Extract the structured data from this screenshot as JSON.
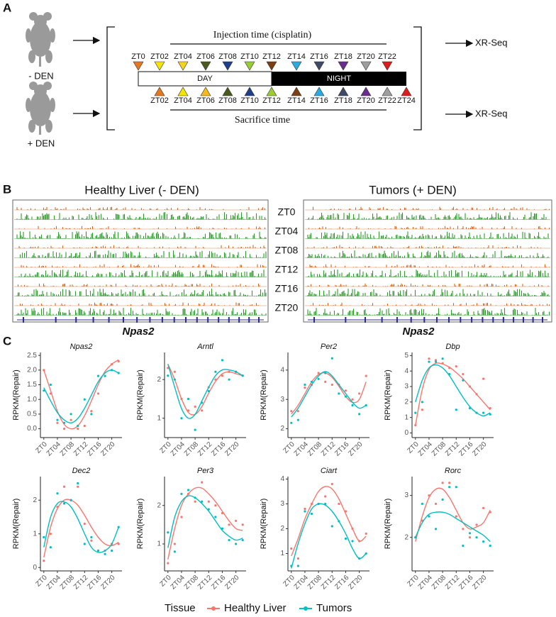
{
  "panels": {
    "a": "A",
    "b": "B",
    "c": "C"
  },
  "design": {
    "injection_label": "Injection time (cisplatin)",
    "sacrifice_label": "Sacrifice time",
    "groups": [
      "- DEN",
      "+ DEN"
    ],
    "output": [
      "XR-Seq",
      "XR-Seq"
    ],
    "day": "DAY",
    "night": "NIGHT",
    "top_points": [
      {
        "label": "ZT0",
        "color": "#e87722"
      },
      {
        "label": "ZT02",
        "color": "#f5e400"
      },
      {
        "label": "ZT04",
        "color": "#f7d31a"
      },
      {
        "label": "ZT06",
        "color": "#4a5a1c"
      },
      {
        "label": "ZT08",
        "color": "#1f3e8c"
      },
      {
        "label": "ZT10",
        "color": "#9acd32"
      },
      {
        "label": "ZT12",
        "color": "#7b3f12"
      },
      {
        "label": "ZT14",
        "color": "#29abe2"
      },
      {
        "label": "ZT16",
        "color": "#3f4a66"
      },
      {
        "label": "ZT18",
        "color": "#6a2c8f"
      },
      {
        "label": "ZT20",
        "color": "#9e9e9e"
      },
      {
        "label": "ZT22",
        "color": "#e01b1b"
      }
    ],
    "bottom_points": [
      {
        "label": "ZT02",
        "color": "#e87722"
      },
      {
        "label": "ZT04",
        "color": "#f5e400"
      },
      {
        "label": "ZT06",
        "color": "#f7b81a"
      },
      {
        "label": "ZT08",
        "color": "#4a5a1c"
      },
      {
        "label": "ZT10",
        "color": "#1f3e8c"
      },
      {
        "label": "ZT12",
        "color": "#9acd32"
      },
      {
        "label": "ZT14",
        "color": "#7b3f12"
      },
      {
        "label": "ZT16",
        "color": "#29abe2"
      },
      {
        "label": "ZT18",
        "color": "#3f4a66"
      },
      {
        "label": "ZT20",
        "color": "#6a2c8f"
      },
      {
        "label": "ZT22",
        "color": "#9e9e9e"
      },
      {
        "label": "ZT24",
        "color": "#e01b1b"
      }
    ]
  },
  "tracks": {
    "left_title": "Healthy Liver (- DEN)",
    "right_title": "Tumors (+ DEN)",
    "timepoints": [
      "ZT0",
      "ZT04",
      "ZT08",
      "ZT12",
      "ZT16",
      "ZT20"
    ],
    "gene_left": "Npas2",
    "gene_right": "Npas2"
  },
  "legend": {
    "title": "Tissue",
    "items": [
      {
        "name": "Healthy Liver",
        "color": "#f8766d"
      },
      {
        "name": "Tumors",
        "color": "#00bfc4"
      }
    ]
  },
  "chart_data": [
    {
      "type": "scatter",
      "title": "Npas2",
      "ylabel": "RPKM(Repair)",
      "x": [
        0,
        2,
        4,
        6,
        8,
        10,
        12,
        14,
        16,
        18,
        20,
        22
      ],
      "xlim": [
        -1,
        23
      ],
      "xticks": [
        {
          "value": 0,
          "label": "ZT0"
        },
        {
          "value": 4,
          "label": "ZT04"
        },
        {
          "value": 8,
          "label": "ZT08"
        },
        {
          "value": 12,
          "label": "ZT12"
        },
        {
          "value": 16,
          "label": "ZT16"
        },
        {
          "value": 20,
          "label": "ZT20"
        }
      ],
      "ylim": [
        -0.3,
        2.6
      ],
      "yticks": [
        {
          "value": 0,
          "label": "0.0"
        },
        0.5,
        {
          "value": 1,
          "label": "1.0"
        },
        1.5,
        {
          "value": 2,
          "label": "2.0"
        },
        2.5
      ],
      "series": [
        {
          "values": [
            2.0,
            1.2,
            0.2,
            0.0,
            0.3,
            0.0,
            0.1,
            0.6,
            1.2,
            1.8,
            2.2,
            2.3
          ],
          "fit": [
            2.0,
            1.3,
            0.6,
            0.15,
            0.0,
            0.1,
            0.45,
            0.95,
            1.5,
            1.95,
            2.2,
            2.35
          ]
        },
        {
          "values": [
            1.3,
            1.5,
            0.3,
            0.2,
            0.5,
            0.1,
            1.0,
            0.5,
            1.8,
            1.8,
            2.0,
            1.9
          ],
          "fit": [
            1.4,
            0.95,
            0.55,
            0.3,
            0.2,
            0.35,
            0.7,
            1.15,
            1.6,
            1.9,
            2.0,
            1.9
          ]
        }
      ]
    },
    {
      "type": "scatter",
      "title": "Arntl",
      "ylabel": "RPKM(Repair)",
      "x": [
        0,
        2,
        4,
        6,
        8,
        10,
        12,
        14,
        16,
        18,
        20,
        22
      ],
      "xlim": [
        -1,
        23
      ],
      "xticks": [
        {
          "value": 0,
          "label": "ZT0"
        },
        {
          "value": 4,
          "label": "ZT04"
        },
        {
          "value": 8,
          "label": "ZT08"
        },
        {
          "value": 12,
          "label": "ZT12"
        },
        {
          "value": 16,
          "label": "ZT16"
        },
        {
          "value": 20,
          "label": "ZT20"
        }
      ],
      "ylim": [
        0.5,
        2.7
      ],
      "yticks": [
        1,
        2
      ],
      "series": [
        {
          "values": [
            2.3,
            2.2,
            1.5,
            1.2,
            1.3,
            1.2,
            1.8,
            2.0,
            2.1,
            2.2,
            2.2,
            2.1
          ],
          "fit": [
            2.4,
            2.0,
            1.5,
            1.15,
            1.1,
            1.3,
            1.65,
            1.95,
            2.15,
            2.2,
            2.15,
            2.1
          ]
        },
        {
          "values": [
            2.1,
            2.0,
            1.0,
            1.5,
            0.7,
            1.4,
            1.7,
            2.2,
            2.5,
            2.0,
            2.2,
            2.1
          ],
          "fit": [
            2.4,
            1.8,
            1.25,
            1.0,
            1.1,
            1.45,
            1.8,
            2.1,
            2.25,
            2.25,
            2.2,
            2.1
          ]
        }
      ]
    },
    {
      "type": "scatter",
      "title": "Per2",
      "ylabel": "RPKM(Repair)",
      "x": [
        0,
        2,
        4,
        6,
        8,
        10,
        12,
        14,
        16,
        18,
        20,
        22
      ],
      "xlim": [
        -1,
        23
      ],
      "xticks": [
        {
          "value": 0,
          "label": "ZT0"
        },
        {
          "value": 4,
          "label": "ZT04"
        },
        {
          "value": 8,
          "label": "ZT08"
        },
        {
          "value": 12,
          "label": "ZT12"
        },
        {
          "value": 16,
          "label": "ZT16"
        },
        {
          "value": 20,
          "label": "ZT20"
        }
      ],
      "ylim": [
        1.7,
        4.6
      ],
      "yticks": [
        2,
        3,
        4
      ],
      "series": [
        {
          "values": [
            2.6,
            2.6,
            3.4,
            3.5,
            3.9,
            3.6,
            3.5,
            3.5,
            3.3,
            3.0,
            3.2,
            3.8
          ],
          "fit": [
            2.5,
            2.8,
            3.2,
            3.6,
            3.85,
            3.9,
            3.75,
            3.45,
            3.1,
            2.9,
            3.0,
            3.6
          ]
        },
        {
          "values": [
            2.2,
            2.3,
            3.5,
            3.6,
            3.7,
            3.9,
            4.4,
            3.2,
            3.1,
            2.8,
            2.5,
            2.8
          ],
          "fit": [
            2.4,
            2.7,
            3.1,
            3.5,
            3.8,
            3.95,
            3.8,
            3.5,
            3.2,
            2.9,
            2.7,
            2.8
          ]
        }
      ]
    },
    {
      "type": "scatter",
      "title": "Dbp",
      "ylabel": "RPKM(Repair)",
      "x": [
        0,
        2,
        4,
        6,
        8,
        10,
        12,
        14,
        16,
        18,
        20,
        22
      ],
      "xlim": [
        -1,
        23
      ],
      "xticks": [
        {
          "value": 0,
          "label": "ZT0"
        },
        {
          "value": 4,
          "label": "ZT04"
        },
        {
          "value": 8,
          "label": "ZT08"
        },
        {
          "value": 12,
          "label": "ZT12"
        },
        {
          "value": 16,
          "label": "ZT16"
        },
        {
          "value": 20,
          "label": "ZT20"
        }
      ],
      "ylim": [
        -0.3,
        5.2
      ],
      "yticks": [
        0,
        1,
        2,
        3,
        4,
        5
      ],
      "series": [
        {
          "values": [
            0.5,
            1.5,
            4.8,
            4.7,
            4.5,
            4.2,
            4.3,
            3.8,
            3.0,
            2.5,
            3.5,
            1.6
          ],
          "fit": [
            0.5,
            2.8,
            4.1,
            4.5,
            4.45,
            4.25,
            3.9,
            3.5,
            3.0,
            2.5,
            2.0,
            1.5
          ]
        },
        {
          "values": [
            1.3,
            2.0,
            4.6,
            4.6,
            4.8,
            3.8,
            1.5,
            3.4,
            1.6,
            1.3,
            1.3,
            1.2
          ],
          "fit": [
            2.0,
            3.4,
            4.2,
            4.4,
            4.2,
            3.7,
            3.0,
            2.3,
            1.7,
            1.3,
            1.1,
            1.3
          ]
        }
      ]
    },
    {
      "type": "scatter",
      "title": "Dec2",
      "ylabel": "RPKM(Repair)",
      "x": [
        0,
        2,
        4,
        6,
        8,
        10,
        12,
        14,
        16,
        18,
        20,
        22
      ],
      "xlim": [
        -1,
        23
      ],
      "xticks": [
        {
          "value": 0,
          "label": "ZT0"
        },
        {
          "value": 4,
          "label": "ZT04"
        },
        {
          "value": 8,
          "label": "ZT08"
        },
        {
          "value": 12,
          "label": "ZT12"
        },
        {
          "value": 16,
          "label": "ZT16"
        },
        {
          "value": 20,
          "label": "ZT20"
        }
      ],
      "ylim": [
        -0.1,
        2.7
      ],
      "yticks": [
        0,
        1,
        2
      ],
      "series": [
        {
          "values": [
            0.2,
            1.0,
            1.8,
            2.4,
            2.0,
            2.4,
            1.3,
            0.8,
            0.5,
            0.5,
            0.7,
            0.7
          ],
          "fit": [
            0.3,
            1.2,
            1.75,
            2.0,
            2.0,
            1.85,
            1.55,
            1.2,
            0.9,
            0.7,
            0.65,
            0.75
          ]
        },
        {
          "values": [
            0.9,
            0.6,
            2.2,
            1.9,
            2.0,
            2.5,
            0.7,
            0.9,
            0.5,
            0.4,
            0.5,
            1.2
          ],
          "fit": [
            0.6,
            1.5,
            1.9,
            1.95,
            1.8,
            1.45,
            1.0,
            0.6,
            0.45,
            0.5,
            0.7,
            1.2
          ]
        }
      ]
    },
    {
      "type": "scatter",
      "title": "Per3",
      "ylabel": "RPKM(Repair)",
      "x": [
        0,
        2,
        4,
        6,
        8,
        10,
        12,
        14,
        16,
        18,
        20,
        22
      ],
      "xlim": [
        -1,
        23
      ],
      "xticks": [
        {
          "value": 0,
          "label": "ZT0"
        },
        {
          "value": 4,
          "label": "ZT04"
        },
        {
          "value": 8,
          "label": "ZT08"
        },
        {
          "value": 12,
          "label": "ZT12"
        },
        {
          "value": 16,
          "label": "ZT16"
        },
        {
          "value": 20,
          "label": "ZT20"
        }
      ],
      "ylim": [
        0.3,
        2.75
      ],
      "yticks": [
        1,
        2
      ],
      "series": [
        {
          "values": [
            0.5,
            1.0,
            1.7,
            2.3,
            2.1,
            2.6,
            2.1,
            2.0,
            1.8,
            1.5,
            1.6,
            1.5
          ],
          "fit": [
            0.6,
            1.4,
            2.0,
            2.3,
            2.45,
            2.45,
            2.3,
            2.1,
            1.85,
            1.6,
            1.4,
            1.35
          ]
        },
        {
          "values": [
            1.3,
            0.8,
            2.3,
            2.4,
            2.2,
            2.1,
            1.9,
            1.7,
            1.4,
            1.1,
            1.0,
            1.1
          ],
          "fit": [
            0.9,
            1.7,
            2.1,
            2.25,
            2.2,
            2.05,
            1.85,
            1.6,
            1.35,
            1.2,
            1.1,
            1.15
          ]
        }
      ]
    },
    {
      "type": "scatter",
      "title": "Ciart",
      "ylabel": "RPKM(Repair)",
      "x": [
        0,
        2,
        4,
        6,
        8,
        10,
        12,
        14,
        16,
        18,
        20,
        22
      ],
      "xlim": [
        -1,
        23
      ],
      "xticks": [
        {
          "value": 0,
          "label": "ZT0"
        },
        {
          "value": 4,
          "label": "ZT04"
        },
        {
          "value": 8,
          "label": "ZT08"
        },
        {
          "value": 12,
          "label": "ZT12"
        },
        {
          "value": 16,
          "label": "ZT16"
        },
        {
          "value": 20,
          "label": "ZT20"
        }
      ],
      "ylim": [
        0.3,
        4.1
      ],
      "yticks": [
        1,
        2,
        3,
        4
      ],
      "series": [
        {
          "values": [
            1.2,
            0.8,
            2.8,
            3.0,
            3.0,
            3.3,
            3.8,
            3.0,
            2.7,
            2.0,
            1.5,
            1.8
          ],
          "fit": [
            0.9,
            1.6,
            2.4,
            3.0,
            3.5,
            3.7,
            3.6,
            3.2,
            2.6,
            2.0,
            1.5,
            1.7
          ]
        },
        {
          "values": [
            0.5,
            0.5,
            2.7,
            2.6,
            3.0,
            3.0,
            2.1,
            2.3,
            1.6,
            1.5,
            0.8,
            1.0
          ],
          "fit": [
            0.4,
            1.4,
            2.2,
            2.8,
            3.0,
            2.95,
            2.7,
            2.3,
            1.8,
            1.2,
            0.8,
            1.0
          ]
        }
      ]
    },
    {
      "type": "scatter",
      "title": "Rorc",
      "ylabel": "RPKM(Repair)",
      "x": [
        0,
        2,
        4,
        6,
        8,
        10,
        12,
        14,
        16,
        18,
        20,
        22
      ],
      "xlim": [
        -1,
        23
      ],
      "xticks": [
        {
          "value": 0,
          "label": "ZT0"
        },
        {
          "value": 4,
          "label": "ZT04"
        },
        {
          "value": 8,
          "label": "ZT08"
        },
        {
          "value": 12,
          "label": "ZT12"
        },
        {
          "value": 16,
          "label": "ZT16"
        },
        {
          "value": 20,
          "label": "ZT20"
        }
      ],
      "ylim": [
        1.2,
        3.45
      ],
      "yticks": [
        2,
        3
      ],
      "series": [
        {
          "values": [
            2.0,
            2.4,
            3.0,
            2.8,
            3.3,
            3.3,
            2.5,
            2.2,
            2.0,
            2.3,
            2.7,
            2.6
          ],
          "fit": [
            1.9,
            2.5,
            2.95,
            3.15,
            3.15,
            2.95,
            2.65,
            2.35,
            2.2,
            2.25,
            2.35,
            2.65
          ]
        },
        {
          "values": [
            2.0,
            2.8,
            2.5,
            2.2,
            2.9,
            3.2,
            3.2,
            1.8,
            2.1,
            2.0,
            1.9,
            1.8
          ],
          "fit": [
            2.0,
            2.35,
            2.55,
            2.6,
            2.6,
            2.55,
            2.45,
            2.35,
            2.25,
            2.15,
            2.05,
            1.9
          ]
        }
      ]
    }
  ]
}
